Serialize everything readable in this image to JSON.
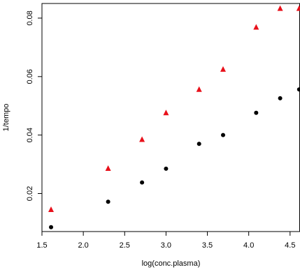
{
  "chart_data": {
    "type": "scatter",
    "title": "",
    "xlabel": "log(conc.plasma)",
    "ylabel": "1/tempo",
    "xlim": [
      1.5,
      4.62
    ],
    "ylim": [
      0.007,
      0.085
    ],
    "x_ticks": [
      1.5,
      2.0,
      2.5,
      3.0,
      3.5,
      4.0,
      4.5
    ],
    "x_tick_labels": [
      "1.5",
      "2.0",
      "2.5",
      "3.0",
      "3.5",
      "4.0",
      "4.5"
    ],
    "y_ticks": [
      0.02,
      0.04,
      0.06,
      0.08
    ],
    "y_tick_labels": [
      "0.02",
      "0.04",
      "0.06",
      "0.08"
    ],
    "grid": false,
    "legend": "none",
    "series": [
      {
        "marker": "circle",
        "color": "#000000",
        "points": [
          {
            "x": 1.61,
            "y": 0.0085
          },
          {
            "x": 2.3,
            "y": 0.0172
          },
          {
            "x": 2.71,
            "y": 0.0238
          },
          {
            "x": 3.0,
            "y": 0.0285
          },
          {
            "x": 3.4,
            "y": 0.037
          },
          {
            "x": 3.69,
            "y": 0.04
          },
          {
            "x": 4.09,
            "y": 0.0476
          },
          {
            "x": 4.38,
            "y": 0.0526
          },
          {
            "x": 4.61,
            "y": 0.0556
          }
        ]
      },
      {
        "marker": "triangle",
        "color": "#e8101a",
        "points": [
          {
            "x": 1.61,
            "y": 0.0145
          },
          {
            "x": 2.3,
            "y": 0.0286
          },
          {
            "x": 2.71,
            "y": 0.0385
          },
          {
            "x": 3.0,
            "y": 0.0476
          },
          {
            "x": 3.4,
            "y": 0.0556
          },
          {
            "x": 3.69,
            "y": 0.0625
          },
          {
            "x": 4.09,
            "y": 0.0769
          },
          {
            "x": 4.38,
            "y": 0.0833
          },
          {
            "x": 4.61,
            "y": 0.0833
          }
        ]
      }
    ]
  }
}
